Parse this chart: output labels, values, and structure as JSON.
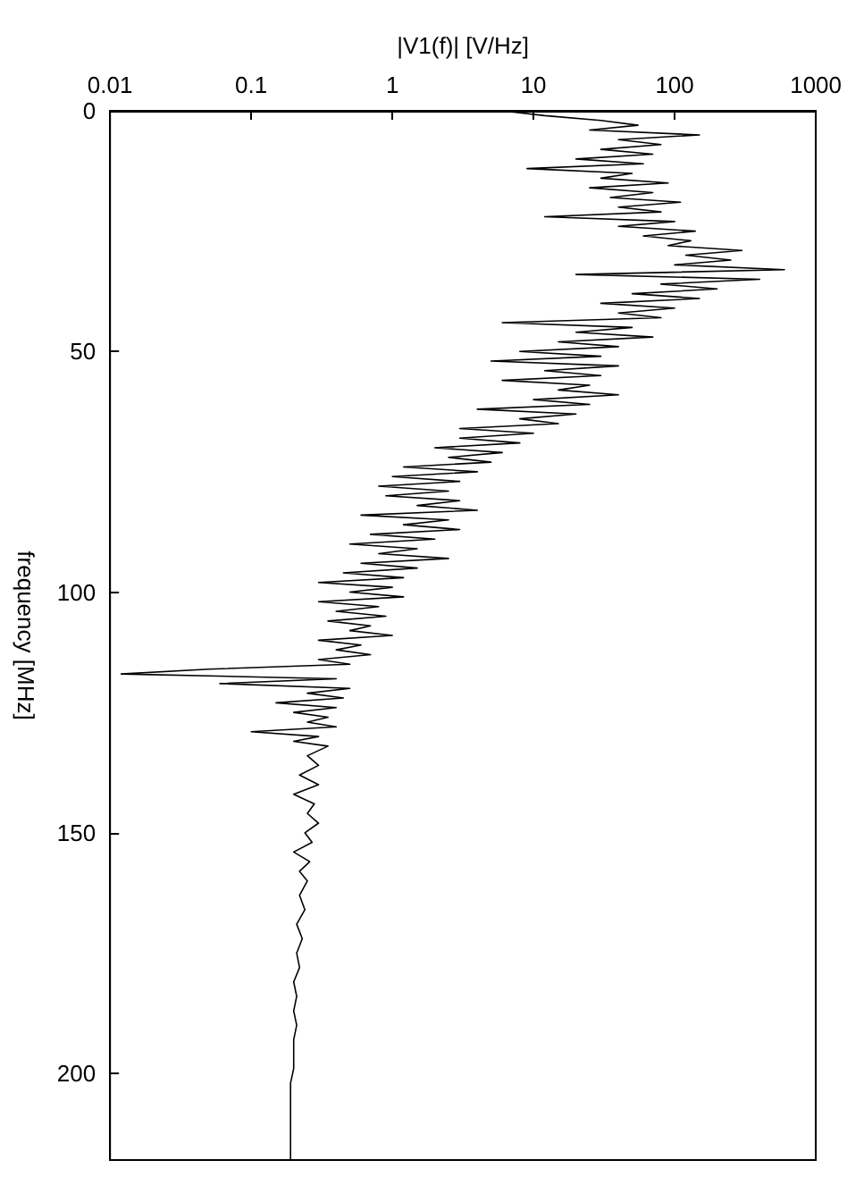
{
  "chart_data": {
    "type": "line",
    "xlabel": "|V1(f)| [V/Hz]",
    "ylabel": "frequency [MHz]",
    "color": "#000000",
    "marker": "none",
    "line_style": "solid",
    "grid": false,
    "log": "x",
    "xlim": [
      0.01,
      1000
    ],
    "xticks": [
      0.01,
      0.1,
      1,
      10,
      100,
      1000
    ],
    "ylim": [
      218,
      0
    ],
    "yticks": [
      0,
      50,
      100,
      150,
      200
    ],
    "x": [
      6,
      12,
      30,
      55,
      25,
      150,
      40,
      80,
      30,
      70,
      20,
      60,
      9,
      50,
      30,
      90,
      25,
      70,
      35,
      110,
      40,
      80,
      12,
      100,
      40,
      140,
      60,
      130,
      90,
      300,
      120,
      250,
      100,
      600,
      20,
      400,
      80,
      200,
      50,
      150,
      30,
      100,
      40,
      80,
      6,
      50,
      20,
      70,
      15,
      40,
      8,
      30,
      5,
      40,
      12,
      30,
      6,
      25,
      15,
      40,
      10,
      25,
      4,
      20,
      8,
      15,
      3,
      10,
      3,
      8,
      2,
      6,
      2.5,
      5,
      1.2,
      4,
      1,
      3,
      0.8,
      2.5,
      0.9,
      3,
      1.5,
      4,
      0.6,
      2.5,
      1.2,
      3,
      0.7,
      2,
      0.5,
      1.5,
      0.8,
      2.5,
      0.6,
      1.5,
      0.45,
      1.2,
      0.3,
      1,
      0.5,
      1.2,
      0.3,
      0.8,
      0.4,
      0.9,
      0.35,
      0.7,
      0.5,
      1,
      0.3,
      0.6,
      0.4,
      0.7,
      0.3,
      0.5,
      0.05,
      0.012,
      0.4,
      0.06,
      0.5,
      0.25,
      0.45,
      0.15,
      0.4,
      0.2,
      0.35,
      0.25,
      0.4,
      0.1,
      0.3,
      0.2,
      0.35,
      0.25,
      0.3,
      0.22,
      0.3,
      0.2,
      0.28,
      0.25,
      0.3,
      0.24,
      0.27,
      0.2,
      0.26,
      0.22,
      0.25,
      0.22,
      0.24,
      0.21,
      0.23,
      0.21,
      0.22,
      0.2,
      0.21,
      0.2,
      0.21,
      0.2,
      0.2,
      0.2,
      0.19,
      0.19,
      0.19,
      0.19,
      0.19
    ],
    "values": [
      0,
      1,
      2,
      3,
      4,
      5,
      6,
      7,
      8,
      9,
      10,
      11,
      12,
      13,
      14,
      15,
      16,
      17,
      18,
      19,
      20,
      21,
      22,
      23,
      24,
      25,
      26,
      27,
      28,
      29,
      30,
      31,
      32,
      33,
      34,
      35,
      36,
      37,
      38,
      39,
      40,
      41,
      42,
      43,
      44,
      45,
      46,
      47,
      48,
      49,
      50,
      51,
      52,
      53,
      54,
      55,
      56,
      57,
      58,
      59,
      60,
      61,
      62,
      63,
      64,
      65,
      66,
      67,
      68,
      69,
      70,
      71,
      72,
      73,
      74,
      75,
      76,
      77,
      78,
      79,
      80,
      81,
      82,
      83,
      84,
      85,
      86,
      87,
      88,
      89,
      90,
      91,
      92,
      93,
      94,
      95,
      96,
      97,
      98,
      99,
      100,
      101,
      102,
      103,
      104,
      105,
      106,
      107,
      108,
      109,
      110,
      111,
      112,
      113,
      114,
      115,
      116,
      117,
      118,
      119,
      120,
      121,
      122,
      123,
      124,
      125,
      126,
      127,
      128,
      129,
      130,
      131,
      132,
      134,
      136,
      138,
      140,
      142,
      144,
      146,
      148,
      150,
      152,
      154,
      156,
      158,
      160,
      163,
      166,
      169,
      172,
      175,
      178,
      181,
      184,
      187,
      190,
      193,
      196,
      199,
      202,
      206,
      210,
      214,
      218
    ]
  }
}
